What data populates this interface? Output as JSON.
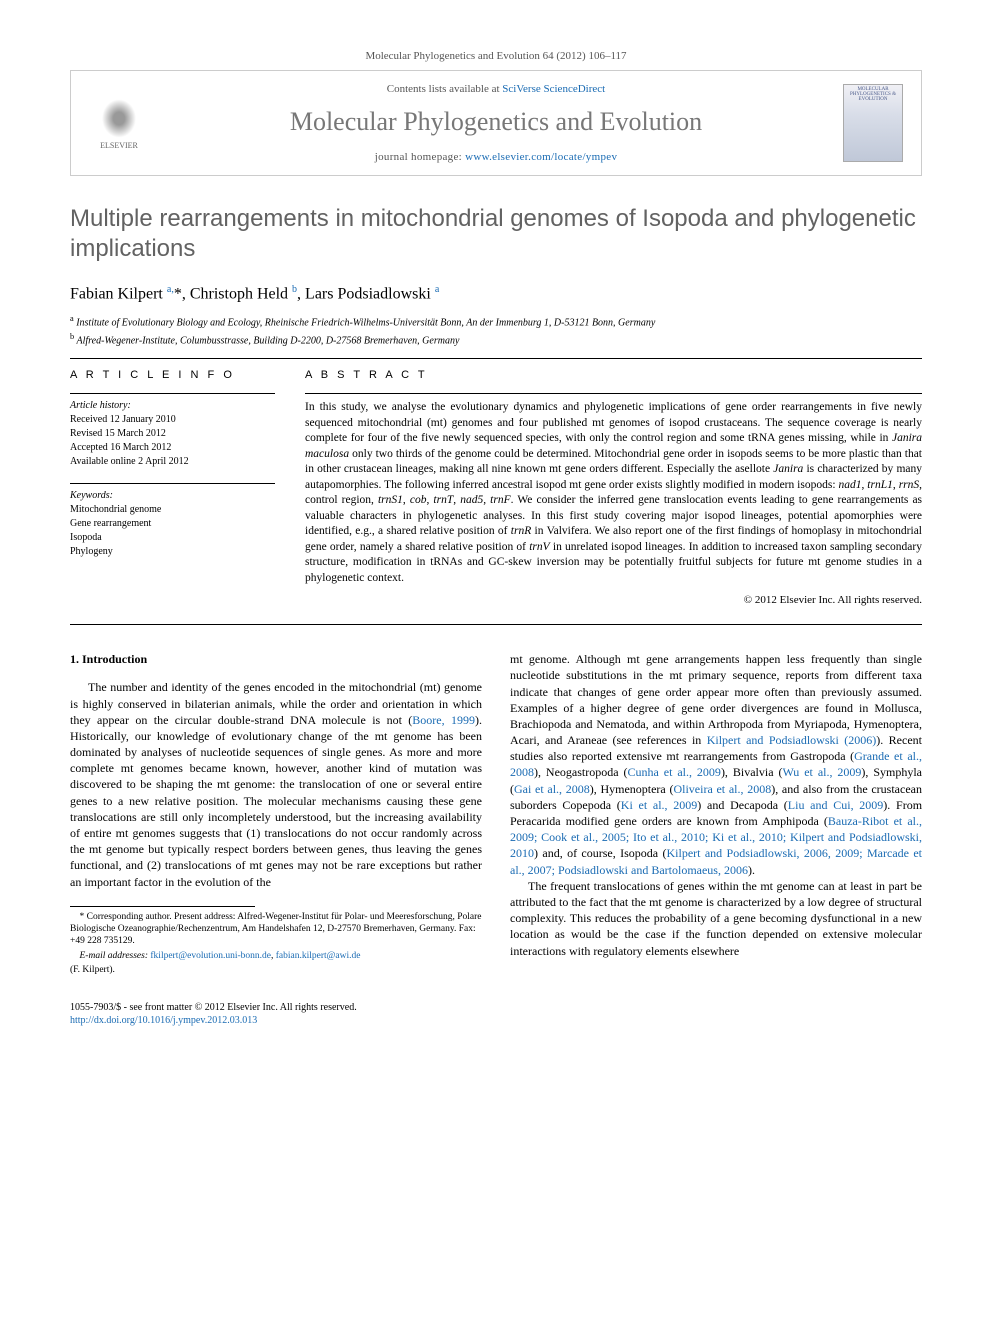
{
  "citation": "Molecular Phylogenetics and Evolution 64 (2012) 106–117",
  "contents_box": {
    "available_prefix": "Contents lists available at ",
    "sciverse": "SciVerse ScienceDirect",
    "journal_name": "Molecular Phylogenetics and Evolution",
    "homepage_prefix": "journal homepage: ",
    "homepage_url": "www.elsevier.com/locate/ympev",
    "publisher_label": "ELSEVIER",
    "cover_text": "MOLECULAR PHYLOGENETICS & EVOLUTION"
  },
  "title": "Multiple rearrangements in mitochondrial genomes of Isopoda and phylogenetic implications",
  "authors_html": "Fabian Kilpert <sup>a,</sup><span class='corr'>*</span>, Christoph Held <sup>b</sup>, Lars Podsiadlowski <sup>a</sup>",
  "affiliations": [
    "a Institute of Evolutionary Biology and Ecology, Rheinische Friedrich-Wilhelms-Universität Bonn, An der Immenburg 1, D-53121 Bonn, Germany",
    "b Alfred-Wegener-Institute, Columbusstrasse, Building D-2200, D-27568 Bremerhaven, Germany"
  ],
  "article_info": {
    "heading": "A R T I C L E   I N F O",
    "history_label": "Article history:",
    "history": [
      "Received 12 January 2010",
      "Revised 15 March 2012",
      "Accepted 16 March 2012",
      "Available online 2 April 2012"
    ],
    "keywords_label": "Keywords:",
    "keywords": [
      "Mitochondrial genome",
      "Gene rearrangement",
      "Isopoda",
      "Phylogeny"
    ]
  },
  "abstract": {
    "heading": "A B S T R A C T",
    "text": "In this study, we analyse the evolutionary dynamics and phylogenetic implications of gene order rearrangements in five newly sequenced mitochondrial (mt) genomes and four published mt genomes of isopod crustaceans. The sequence coverage is nearly complete for four of the five newly sequenced species, with only the control region and some tRNA genes missing, while in Janira maculosa only two thirds of the genome could be determined. Mitochondrial gene order in isopods seems to be more plastic than that in other crustacean lineages, making all nine known mt gene orders different. Especially the asellote Janira is characterized by many autapomorphies. The following inferred ancestral isopod mt gene order exists slightly modified in modern isopods: nad1, trnL1, rrnS, control region, trnS1, cob, trnT, nad5, trnF. We consider the inferred gene translocation events leading to gene rearrangements as valuable characters in phylogenetic analyses. In this first study covering major isopod lineages, potential apomorphies were identified, e.g., a shared relative position of trnR in Valvifera. We also report one of the first findings of homoplasy in mitochondrial gene order, namely a shared relative position of trnV in unrelated isopod lineages. In addition to increased taxon sampling secondary structure, modification in tRNAs and GC-skew inversion may be potentially fruitful subjects for future mt genome studies in a phylogenetic context.",
    "copyright": "© 2012 Elsevier Inc. All rights reserved."
  },
  "intro": {
    "heading": "1. Introduction",
    "para1": "The number and identity of the genes encoded in the mitochondrial (mt) genome is highly conserved in bilaterian animals, while the order and orientation in which they appear on the circular double-strand DNA molecule is not (Boore, 1999). Historically, our knowledge of evolutionary change of the mt genome has been dominated by analyses of nucleotide sequences of single genes. As more and more complete mt genomes became known, however, another kind of mutation was discovered to be shaping the mt genome: the translocation of one or several entire genes to a new relative position. The molecular mechanisms causing these gene translocations are still only incompletely understood, but the increasing availability of entire mt genomes suggests that (1) translocations do not occur randomly across the mt genome but typically respect borders between genes, thus leaving the genes functional, and (2) translocations of mt genes may not be rare exceptions but rather an important factor in the evolution of the",
    "para1_cont": "mt genome. Although mt gene arrangements happen less frequently than single nucleotide substitutions in the mt primary sequence, reports from different taxa indicate that changes of gene order appear more often than previously assumed. Examples of a higher degree of gene order divergences are found in Mollusca, Brachiopoda and Nematoda, and within Arthropoda from Myriapoda, Hymenoptera, Acari, and Araneae (see references in Kilpert and Podsiadlowski (2006)). Recent studies also reported extensive mt rearrangements from Gastropoda (Grande et al., 2008), Neogastropoda (Cunha et al., 2009), Bivalvia (Wu et al., 2009), Symphyla (Gai et al., 2008), Hymenoptera (Oliveira et al., 2008), and also from the crustacean suborders Copepoda (Ki et al., 2009) and Decapoda (Liu and Cui, 2009). From Peracarida modified gene orders are known from Amphipoda (Bauza-Ribot et al., 2009; Cook et al., 2005; Ito et al., 2010; Ki et al., 2010; Kilpert and Podsiadlowski, 2010) and, of course, Isopoda (Kilpert and Podsiadlowski, 2006, 2009; Marcade et al., 2007; Podsiadlowski and Bartolomaeus, 2006).",
    "para2": "The frequent translocations of genes within the mt genome can at least in part be attributed to the fact that the mt genome is characterized by a low degree of structural complexity. This reduces the probability of a gene becoming dysfunctional in a new location as would be the case if the function depended on extensive molecular interactions with regulatory elements elsewhere"
  },
  "footnotes": {
    "corresponding": "* Corresponding author. Present address: Alfred-Wegener-Institut für Polar- und Meeresforschung, Polare Biologische Ozeanographie/Rechenzentrum, Am Handelshafen 12, D-27570 Bremerhaven, Germany. Fax: +49 228 735129.",
    "emails_label": "E-mail addresses:",
    "email1": "fkilpert@evolution.uni-bonn.de",
    "email2": "fabian.kilpert@awi.de",
    "email_author": "(F. Kilpert)."
  },
  "bottom": {
    "issn": "1055-7903/$ - see front matter © 2012 Elsevier Inc. All rights reserved.",
    "doi": "http://dx.doi.org/10.1016/j.ympev.2012.03.013"
  },
  "colors": {
    "link": "#1a6bb3",
    "title_gray": "#626262",
    "journal_gray": "#777777",
    "text": "#000000",
    "meta_gray": "#555555"
  }
}
